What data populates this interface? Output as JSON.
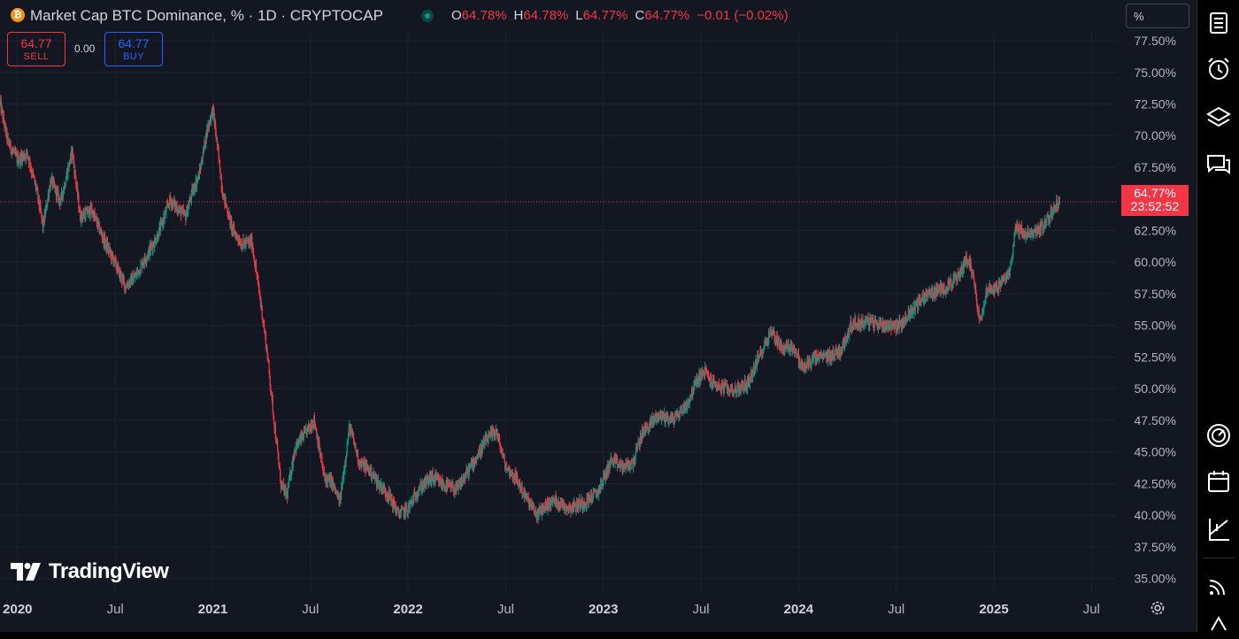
{
  "header": {
    "symbol_badge": "₿",
    "title": "Market Cap BTC Dominance, % · 1D · CRYPTOCAP",
    "ohlc": [
      {
        "k": "O",
        "v": "64.78%"
      },
      {
        "k": "H",
        "v": "64.78%"
      },
      {
        "k": "L",
        "v": "64.77%"
      },
      {
        "k": "C",
        "v": "64.77%"
      }
    ],
    "change": "−0.01 (−0.02%)"
  },
  "trade": {
    "sell_price": "64.77",
    "sell_label": "SELL",
    "spread": "0.00",
    "buy_price": "64.77",
    "buy_label": "BUY"
  },
  "scale_mode": "%",
  "last_price": {
    "value": "64.77%",
    "countdown": "23:52:52"
  },
  "brand": "TradingView",
  "colors": {
    "up": "#089981",
    "down": "#f23645",
    "background": "#131722",
    "grid": "#1e222d",
    "accent": "#2962ff"
  },
  "icons": [
    "watchlist-icon",
    "alert-clock-icon",
    "layers-icon",
    "chat-icon",
    "gauge-icon",
    "calendar-icon",
    "chart-tool-icon",
    "broadcast-icon",
    "notifications-icon",
    "settings-gear-icon"
  ],
  "chart_data": {
    "type": "candlestick",
    "title": "Market Cap BTC Dominance, % · 1D · CRYPTOCAP",
    "ylim": [
      34,
      78.2
    ],
    "xlim": [
      2019.91,
      2025.63
    ],
    "yticks": [
      "35.00%",
      "37.50%",
      "40.00%",
      "42.50%",
      "45.00%",
      "47.50%",
      "50.00%",
      "52.50%",
      "55.00%",
      "57.50%",
      "60.00%",
      "62.50%",
      "67.50%",
      "70.00%",
      "72.50%",
      "75.00%",
      "77.50%"
    ],
    "xticks": [
      {
        "t": 2020.0,
        "label": "2020",
        "bold": true
      },
      {
        "t": 2020.5,
        "label": "Jul",
        "bold": false
      },
      {
        "t": 2021.0,
        "label": "2021",
        "bold": true
      },
      {
        "t": 2021.5,
        "label": "Jul",
        "bold": false
      },
      {
        "t": 2022.0,
        "label": "2022",
        "bold": true
      },
      {
        "t": 2022.5,
        "label": "Jul",
        "bold": false
      },
      {
        "t": 2023.0,
        "label": "2023",
        "bold": true
      },
      {
        "t": 2023.5,
        "label": "Jul",
        "bold": false
      },
      {
        "t": 2024.0,
        "label": "2024",
        "bold": true
      },
      {
        "t": 2024.5,
        "label": "Jul",
        "bold": false
      },
      {
        "t": 2025.0,
        "label": "2025",
        "bold": true
      },
      {
        "t": 2025.5,
        "label": "Jul",
        "bold": false
      }
    ],
    "last_value": 64.77,
    "path": [
      [
        2019.91,
        72.6
      ],
      [
        2019.95,
        69.5
      ],
      [
        2020.0,
        68.1
      ],
      [
        2020.05,
        68.6
      ],
      [
        2020.1,
        65.5
      ],
      [
        2020.13,
        62.8
      ],
      [
        2020.17,
        66.5
      ],
      [
        2020.22,
        64.8
      ],
      [
        2020.28,
        68.8
      ],
      [
        2020.32,
        63.6
      ],
      [
        2020.38,
        64.1
      ],
      [
        2020.44,
        61.8
      ],
      [
        2020.5,
        59.9
      ],
      [
        2020.55,
        58.1
      ],
      [
        2020.6,
        58.8
      ],
      [
        2020.65,
        60.2
      ],
      [
        2020.72,
        62.2
      ],
      [
        2020.78,
        64.9
      ],
      [
        2020.86,
        63.6
      ],
      [
        2020.9,
        65.8
      ],
      [
        2020.93,
        66.9
      ],
      [
        2020.97,
        70.4
      ],
      [
        2021.0,
        72.1
      ],
      [
        2021.02,
        69.6
      ],
      [
        2021.05,
        65.5
      ],
      [
        2021.1,
        62.6
      ],
      [
        2021.15,
        61.4
      ],
      [
        2021.2,
        61.6
      ],
      [
        2021.25,
        56.3
      ],
      [
        2021.28,
        52.6
      ],
      [
        2021.31,
        48.0
      ],
      [
        2021.35,
        42.3
      ],
      [
        2021.38,
        41.6
      ],
      [
        2021.42,
        45.3
      ],
      [
        2021.47,
        46.4
      ],
      [
        2021.52,
        47.5
      ],
      [
        2021.57,
        43.0
      ],
      [
        2021.61,
        42.6
      ],
      [
        2021.65,
        41.0
      ],
      [
        2021.7,
        47.0
      ],
      [
        2021.75,
        44.2
      ],
      [
        2021.8,
        43.6
      ],
      [
        2021.85,
        42.5
      ],
      [
        2021.9,
        41.6
      ],
      [
        2021.95,
        40.1
      ],
      [
        2022.0,
        40.5
      ],
      [
        2022.05,
        42.0
      ],
      [
        2022.12,
        43.0
      ],
      [
        2022.18,
        42.4
      ],
      [
        2022.25,
        42.0
      ],
      [
        2022.32,
        43.8
      ],
      [
        2022.4,
        45.9
      ],
      [
        2022.45,
        46.7
      ],
      [
        2022.5,
        43.8
      ],
      [
        2022.55,
        43.0
      ],
      [
        2022.6,
        41.5
      ],
      [
        2022.66,
        40.0
      ],
      [
        2022.7,
        40.7
      ],
      [
        2022.75,
        41.2
      ],
      [
        2022.82,
        40.6
      ],
      [
        2022.9,
        41.0
      ],
      [
        2022.97,
        41.8
      ],
      [
        2023.04,
        44.3
      ],
      [
        2023.1,
        43.8
      ],
      [
        2023.15,
        44.1
      ],
      [
        2023.2,
        46.5
      ],
      [
        2023.28,
        47.9
      ],
      [
        2023.36,
        47.6
      ],
      [
        2023.43,
        48.8
      ],
      [
        2023.48,
        50.7
      ],
      [
        2023.52,
        51.4
      ],
      [
        2023.55,
        50.6
      ],
      [
        2023.6,
        50.1
      ],
      [
        2023.68,
        49.9
      ],
      [
        2023.74,
        50.4
      ],
      [
        2023.8,
        52.6
      ],
      [
        2023.86,
        54.6
      ],
      [
        2023.92,
        53.1
      ],
      [
        2023.97,
        53.4
      ],
      [
        2024.02,
        51.6
      ],
      [
        2024.08,
        52.4
      ],
      [
        2024.16,
        52.6
      ],
      [
        2024.22,
        53.1
      ],
      [
        2024.27,
        55.1
      ],
      [
        2024.36,
        55.3
      ],
      [
        2024.42,
        55.1
      ],
      [
        2024.52,
        55.0
      ],
      [
        2024.58,
        56.2
      ],
      [
        2024.65,
        57.4
      ],
      [
        2024.74,
        57.9
      ],
      [
        2024.82,
        58.8
      ],
      [
        2024.86,
        60.4
      ],
      [
        2024.89,
        59.3
      ],
      [
        2024.93,
        55.2
      ],
      [
        2024.96,
        57.8
      ],
      [
        2025.02,
        58.0
      ],
      [
        2025.08,
        59.1
      ],
      [
        2025.11,
        62.7
      ],
      [
        2025.18,
        62.1
      ],
      [
        2025.25,
        62.8
      ],
      [
        2025.28,
        63.5
      ],
      [
        2025.32,
        64.6
      ],
      [
        2025.34,
        64.77
      ]
    ]
  }
}
